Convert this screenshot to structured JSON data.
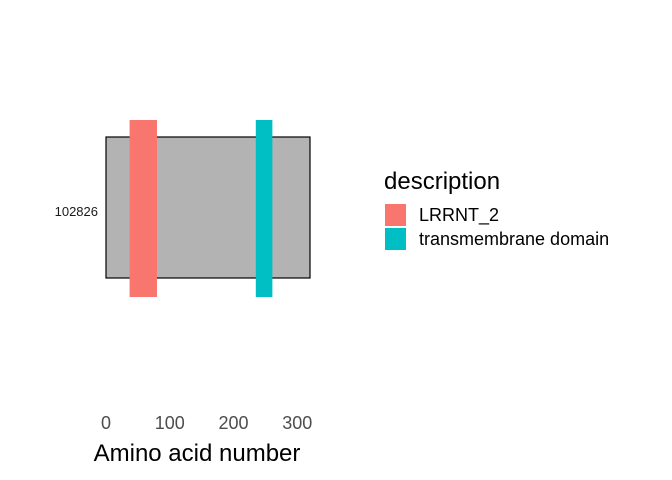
{
  "chart_data": {
    "type": "bar",
    "title": "",
    "xlabel": "Amino acid number",
    "ylabel": "",
    "xlim": [
      0,
      320
    ],
    "xticks": [
      0,
      100,
      200,
      300
    ],
    "grid": false,
    "legend_position": "right",
    "legend_title": "description",
    "protein": {
      "label": "102826",
      "start": 1,
      "end": 320,
      "color": "#b3b3b3"
    },
    "domains": [
      {
        "name": "LRRNT_2",
        "start": 37,
        "end": 80,
        "color": "#f8766d"
      },
      {
        "name": "transmembrane domain",
        "start": 235,
        "end": 261,
        "color": "#00bfc4"
      }
    ]
  }
}
